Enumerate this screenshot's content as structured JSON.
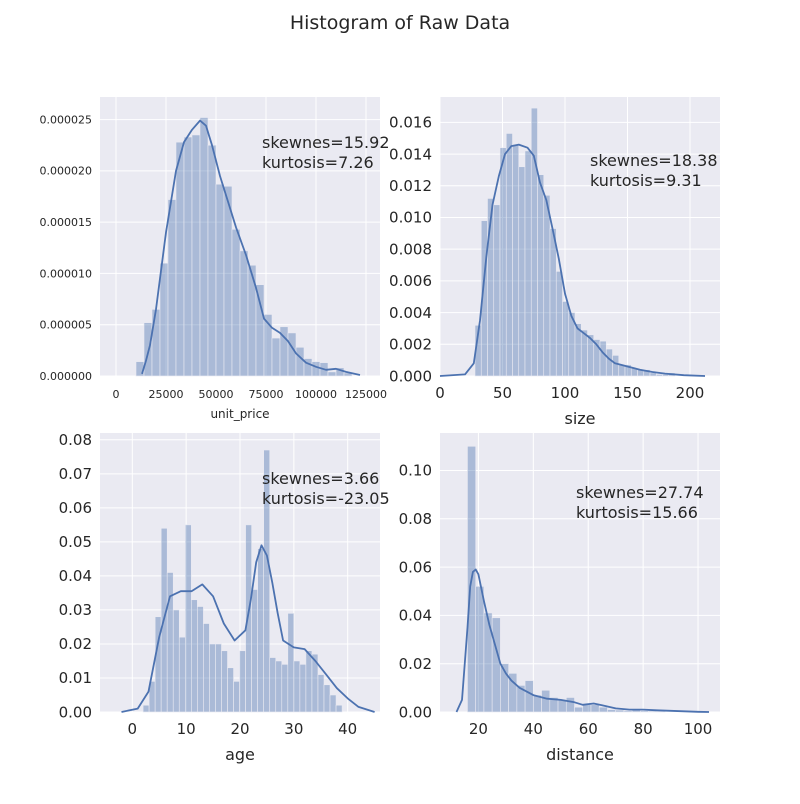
{
  "figure": {
    "title": "Histogram of Raw Data"
  },
  "chart_data": [
    {
      "type": "histogram",
      "xlabel": "unit_price",
      "ylabel": "",
      "xlim": [
        -8000,
        132000
      ],
      "ylim": [
        0,
        2.72e-05
      ],
      "xticks": [
        0,
        25000,
        50000,
        75000,
        100000,
        125000
      ],
      "yticks": [
        0,
        5e-06,
        1e-05,
        1.5e-05,
        2e-05,
        2.5e-05
      ],
      "ytick_labels": [
        "0.000000",
        "0.000005",
        "0.000010",
        "0.000015",
        "0.000020",
        "0.000025"
      ],
      "annotation": [
        "skewnes=15.92",
        "kurtosis=7.26"
      ],
      "bins": [
        [
          10000,
          14000,
          1.4e-06
        ],
        [
          14000,
          18000,
          5.2e-06
        ],
        [
          18000,
          22000,
          6.5e-06
        ],
        [
          22000,
          26000,
          1.1e-05
        ],
        [
          26000,
          30000,
          1.72e-05
        ],
        [
          30000,
          34000,
          2.28e-05
        ],
        [
          34000,
          38000,
          2.33e-05
        ],
        [
          38000,
          42000,
          2.35e-05
        ],
        [
          42000,
          46000,
          2.52e-05
        ],
        [
          46000,
          50000,
          2.25e-05
        ],
        [
          50000,
          54000,
          1.87e-05
        ],
        [
          54000,
          58000,
          1.85e-05
        ],
        [
          58000,
          62000,
          1.43e-05
        ],
        [
          62000,
          66000,
          1.22e-05
        ],
        [
          66000,
          70000,
          1.08e-05
        ],
        [
          70000,
          74000,
          8.9e-06
        ],
        [
          74000,
          78000,
          6e-06
        ],
        [
          78000,
          82000,
          3.7e-06
        ],
        [
          82000,
          86000,
          4.8e-06
        ],
        [
          86000,
          90000,
          4.2e-06
        ],
        [
          90000,
          94000,
          2.8e-06
        ],
        [
          94000,
          98000,
          1.7e-06
        ],
        [
          98000,
          102000,
          1.4e-06
        ],
        [
          102000,
          106000,
          1.3e-06
        ],
        [
          106000,
          110000,
          4e-07
        ],
        [
          110000,
          114000,
          8e-07
        ],
        [
          114000,
          118000,
          3e-07
        ]
      ],
      "kde": [
        [
          13000,
          2e-07
        ],
        [
          15000,
          1.5e-06
        ],
        [
          17000,
          3e-06
        ],
        [
          20000,
          6.5e-06
        ],
        [
          25000,
          1.4e-05
        ],
        [
          30000,
          2e-05
        ],
        [
          34000,
          2.28e-05
        ],
        [
          38000,
          2.4e-05
        ],
        [
          42000,
          2.49e-05
        ],
        [
          45000,
          2.44e-05
        ],
        [
          48000,
          2.25e-05
        ],
        [
          52000,
          1.95e-05
        ],
        [
          56000,
          1.7e-05
        ],
        [
          60000,
          1.45e-05
        ],
        [
          65000,
          1.18e-05
        ],
        [
          70000,
          8.6e-06
        ],
        [
          74000,
          5.6e-06
        ],
        [
          78000,
          4.7e-06
        ],
        [
          82000,
          4.2e-06
        ],
        [
          86000,
          3.4e-06
        ],
        [
          90000,
          2.2e-06
        ],
        [
          95000,
          1.3e-06
        ],
        [
          100000,
          9e-07
        ],
        [
          105000,
          6e-07
        ],
        [
          110000,
          7e-07
        ],
        [
          115000,
          4e-07
        ],
        [
          122000,
          1e-07
        ]
      ]
    },
    {
      "type": "histogram",
      "xlabel": "size",
      "ylabel": "",
      "xlim": [
        0,
        224
      ],
      "ylim": [
        0,
        0.0176
      ],
      "xticks": [
        0,
        50,
        100,
        150,
        200
      ],
      "yticks": [
        0,
        0.002,
        0.004,
        0.006,
        0.008,
        0.01,
        0.012,
        0.014,
        0.016
      ],
      "ytick_labels": [
        "0.000",
        "0.002",
        "0.004",
        "0.006",
        "0.008",
        "0.010",
        "0.012",
        "0.014",
        "0.016"
      ],
      "annotation": [
        "skewnes=18.38",
        "kurtosis=9.31"
      ],
      "bins": [
        [
          28,
          33,
          0.0032
        ],
        [
          33,
          38,
          0.0098
        ],
        [
          38,
          43,
          0.0112
        ],
        [
          43,
          48,
          0.0108
        ],
        [
          48,
          53,
          0.0144
        ],
        [
          53,
          58,
          0.0153
        ],
        [
          58,
          63,
          0.0146
        ],
        [
          63,
          68,
          0.0132
        ],
        [
          68,
          73,
          0.0142
        ],
        [
          73,
          78,
          0.0169
        ],
        [
          78,
          83,
          0.0127
        ],
        [
          83,
          88,
          0.0114
        ],
        [
          88,
          93,
          0.0093
        ],
        [
          93,
          98,
          0.0066
        ],
        [
          98,
          103,
          0.0047
        ],
        [
          103,
          108,
          0.004
        ],
        [
          108,
          113,
          0.0033
        ],
        [
          113,
          118,
          0.0029
        ],
        [
          118,
          123,
          0.0026
        ],
        [
          123,
          128,
          0.0023
        ],
        [
          128,
          133,
          0.0022
        ],
        [
          133,
          138,
          0.0017
        ],
        [
          138,
          143,
          0.0013
        ],
        [
          143,
          148,
          0.0007
        ],
        [
          148,
          153,
          0.0007
        ],
        [
          153,
          158,
          0.0005
        ],
        [
          158,
          163,
          0.0004
        ],
        [
          163,
          168,
          0.0004
        ],
        [
          168,
          173,
          0.0002
        ],
        [
          173,
          178,
          0.0001
        ],
        [
          178,
          183,
          0.0001
        ],
        [
          183,
          188,
          0.0002
        ]
      ],
      "kde": [
        [
          0,
          0
        ],
        [
          20,
          0.0001
        ],
        [
          27,
          0.0008
        ],
        [
          32,
          0.0035
        ],
        [
          37,
          0.0075
        ],
        [
          42,
          0.0108
        ],
        [
          47,
          0.0126
        ],
        [
          52,
          0.014
        ],
        [
          57,
          0.0145
        ],
        [
          63,
          0.0146
        ],
        [
          70,
          0.0144
        ],
        [
          75,
          0.0139
        ],
        [
          80,
          0.0122
        ],
        [
          85,
          0.0111
        ],
        [
          90,
          0.0093
        ],
        [
          95,
          0.0074
        ],
        [
          100,
          0.0052
        ],
        [
          105,
          0.0038
        ],
        [
          110,
          0.003
        ],
        [
          115,
          0.0027
        ],
        [
          120,
          0.0024
        ],
        [
          125,
          0.002
        ],
        [
          130,
          0.0015
        ],
        [
          135,
          0.0011
        ],
        [
          140,
          0.0008
        ],
        [
          145,
          0.0007
        ],
        [
          150,
          0.0006
        ],
        [
          160,
          0.0004
        ],
        [
          170,
          0.00025
        ],
        [
          180,
          0.00015
        ],
        [
          195,
          5e-05
        ],
        [
          212,
          0
        ]
      ]
    },
    {
      "type": "histogram",
      "xlabel": "age",
      "ylabel": "",
      "xlim": [
        -6,
        46
      ],
      "ylim": [
        0,
        0.082
      ],
      "xticks": [
        0,
        10,
        20,
        30,
        40
      ],
      "yticks": [
        0,
        0.01,
        0.02,
        0.03,
        0.04,
        0.05,
        0.06,
        0.07,
        0.08
      ],
      "ytick_labels": [
        "0.00",
        "0.01",
        "0.02",
        "0.03",
        "0.04",
        "0.05",
        "0.06",
        "0.07",
        "0.08"
      ],
      "annotation": [
        "skewnes=3.66",
        "kurtosis=-23.05"
      ],
      "bins": [
        [
          2,
          3.12,
          0.002
        ],
        [
          3.12,
          4.24,
          0.009
        ],
        [
          4.24,
          5.36,
          0.028
        ],
        [
          5.36,
          6.48,
          0.054
        ],
        [
          6.48,
          7.6,
          0.041
        ],
        [
          7.6,
          8.72,
          0.03
        ],
        [
          8.72,
          9.84,
          0.022
        ],
        [
          9.84,
          10.96,
          0.055
        ],
        [
          10.96,
          12.08,
          0.033
        ],
        [
          12.08,
          13.2,
          0.031
        ],
        [
          13.2,
          14.32,
          0.026
        ],
        [
          14.32,
          15.44,
          0.02
        ],
        [
          15.44,
          16.56,
          0.02
        ],
        [
          16.56,
          17.68,
          0.018
        ],
        [
          17.68,
          18.8,
          0.013
        ],
        [
          18.8,
          19.92,
          0.009
        ],
        [
          19.92,
          21.04,
          0.018
        ],
        [
          21.04,
          22.16,
          0.055
        ],
        [
          22.16,
          23.28,
          0.036
        ],
        [
          23.28,
          24.4,
          0.048
        ],
        [
          24.4,
          25.52,
          0.077
        ],
        [
          25.52,
          26.64,
          0.016
        ],
        [
          26.64,
          27.76,
          0.015
        ],
        [
          27.76,
          28.88,
          0.014
        ],
        [
          28.88,
          30,
          0.029
        ],
        [
          30,
          31.12,
          0.015
        ],
        [
          31.12,
          32.24,
          0.014
        ],
        [
          32.24,
          33.36,
          0.018
        ],
        [
          33.36,
          34.48,
          0.017
        ],
        [
          34.48,
          35.6,
          0.011
        ],
        [
          35.6,
          36.72,
          0.008
        ],
        [
          36.72,
          37.84,
          0.005
        ],
        [
          37.84,
          38.96,
          0.002
        ]
      ],
      "kde": [
        [
          -2,
          0
        ],
        [
          1,
          0.001
        ],
        [
          3,
          0.006
        ],
        [
          5,
          0.022
        ],
        [
          7,
          0.034
        ],
        [
          9,
          0.0355
        ],
        [
          11,
          0.0355
        ],
        [
          13,
          0.0375
        ],
        [
          15,
          0.034
        ],
        [
          17,
          0.026
        ],
        [
          19,
          0.021
        ],
        [
          21,
          0.024
        ],
        [
          22,
          0.033
        ],
        [
          23,
          0.044
        ],
        [
          24,
          0.049
        ],
        [
          25,
          0.046
        ],
        [
          26,
          0.038
        ],
        [
          27,
          0.029
        ],
        [
          28,
          0.021
        ],
        [
          30,
          0.019
        ],
        [
          32,
          0.0185
        ],
        [
          34,
          0.015
        ],
        [
          36,
          0.011
        ],
        [
          38,
          0.007
        ],
        [
          40,
          0.004
        ],
        [
          42,
          0.0015
        ],
        [
          45,
          0
        ]
      ]
    },
    {
      "type": "histogram",
      "xlabel": "distance",
      "ylabel": "",
      "xlim": [
        6,
        108
      ],
      "ylim": [
        0,
        0.1155
      ],
      "xticks": [
        20,
        40,
        60,
        80,
        100
      ],
      "yticks": [
        0,
        0.02,
        0.04,
        0.06,
        0.08,
        0.1
      ],
      "ytick_labels": [
        "0.00",
        "0.02",
        "0.04",
        "0.06",
        "0.08",
        "0.10"
      ],
      "annotation": [
        "skewnes=27.74",
        "kurtosis=15.66"
      ],
      "bins": [
        [
          16,
          19,
          0.11
        ],
        [
          19,
          22,
          0.052
        ],
        [
          22,
          25,
          0.041
        ],
        [
          25,
          28,
          0.039
        ],
        [
          28,
          31,
          0.02
        ],
        [
          31,
          34,
          0.016
        ],
        [
          34,
          37,
          0.011
        ],
        [
          37,
          40,
          0.013
        ],
        [
          40,
          43,
          0.007
        ],
        [
          43,
          46,
          0.009
        ],
        [
          46,
          49,
          0.006
        ],
        [
          49,
          52,
          0.005
        ],
        [
          52,
          55,
          0.006
        ],
        [
          55,
          58,
          0.002
        ],
        [
          58,
          61,
          0.003
        ],
        [
          61,
          64,
          0.003
        ],
        [
          64,
          67,
          0.002
        ],
        [
          67,
          70,
          0.001
        ],
        [
          70,
          73,
          0.0008
        ],
        [
          73,
          76,
          0.0005
        ],
        [
          76,
          79,
          0.0008
        ],
        [
          79,
          82,
          0.0005
        ],
        [
          82,
          85,
          0.0004
        ],
        [
          85,
          88,
          0.0003
        ]
      ],
      "kde": [
        [
          12,
          0
        ],
        [
          14,
          0.005
        ],
        [
          16,
          0.035
        ],
        [
          17,
          0.052
        ],
        [
          18,
          0.058
        ],
        [
          19,
          0.059
        ],
        [
          20,
          0.057
        ],
        [
          22,
          0.046
        ],
        [
          24,
          0.036
        ],
        [
          26,
          0.028
        ],
        [
          28,
          0.02
        ],
        [
          30,
          0.016
        ],
        [
          32,
          0.013
        ],
        [
          35,
          0.01
        ],
        [
          40,
          0.007
        ],
        [
          45,
          0.0055
        ],
        [
          50,
          0.005
        ],
        [
          55,
          0.004
        ],
        [
          58,
          0.003
        ],
        [
          62,
          0.0035
        ],
        [
          65,
          0.0028
        ],
        [
          70,
          0.0015
        ],
        [
          75,
          0.001
        ],
        [
          80,
          0.001
        ],
        [
          85,
          0.0007
        ],
        [
          90,
          0.0005
        ],
        [
          100,
          0.0001
        ],
        [
          104,
          0
        ]
      ]
    }
  ]
}
